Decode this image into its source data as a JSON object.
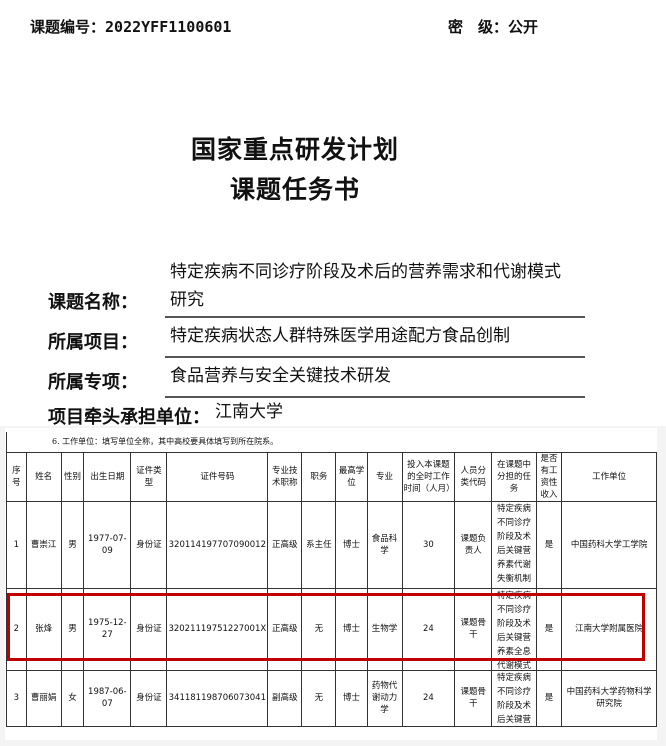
{
  "header": {
    "code_label": "课题编号：",
    "code": "2022YFF1100601",
    "secret_label": "密　级：",
    "secret": "公开"
  },
  "title": {
    "line1": "国家重点研发计划",
    "line2": "课题任务书"
  },
  "fields": [
    {
      "label": "课题名称：",
      "value_line1": "特定疾病不同诊疗阶段及术后的营养需求和代谢模式",
      "value_line2": "研究"
    },
    {
      "label": "所属项目：",
      "value": "特定疾病状态人群特殊医学用途配方食品创制"
    },
    {
      "label": "所属专项：",
      "value": "食品营养与安全关键技术研发"
    },
    {
      "label": "项目牵头承担单位：",
      "value": "江南大学"
    }
  ],
  "table": {
    "note": "6. 工作单位：填写单位全称，其中高校要具体填写到所在院系。",
    "headers": [
      "序号",
      "姓名",
      "性别",
      "出生日期",
      "证件类型",
      "证件号码",
      "专业技术职称",
      "职务",
      "最高学位",
      "专业",
      "投入本课题的全时工作时间（人月）",
      "人员分类代码",
      "在课题中分担的任务",
      "是否有工资性收入",
      "工作单位"
    ],
    "rows": [
      [
        "1",
        "曹崇江",
        "男",
        "1977-07-09",
        "身份证",
        "320114197707090012",
        "正高级",
        "系主任",
        "博士",
        "食品科学",
        "30",
        "课题负责人",
        "特定疾病不同诊疗阶段及术后关键营养素代谢失衡机制研究",
        "是",
        "中国药科大学工学院"
      ],
      [
        "2",
        "张烽",
        "男",
        "1975-12-27",
        "身份证",
        "32021119751227001X",
        "正高级",
        "无",
        "博士",
        "生物学",
        "24",
        "课题骨干",
        "特定疾病不同诊疗阶段及术后关键营养素全息代谢模式研究",
        "是",
        "江南大学附属医院"
      ],
      [
        "3",
        "曹丽娟",
        "女",
        "1987-06-07",
        "身份证",
        "341181198706073041",
        "副高级",
        "无",
        "博士",
        "药物代谢动力学",
        "24",
        "课题骨干",
        "特定疾病不同诊疗阶段及术后关键营养素代谢",
        "是",
        "中国药科大学药物科学研究院"
      ]
    ]
  },
  "highlight_color": "#c00000"
}
